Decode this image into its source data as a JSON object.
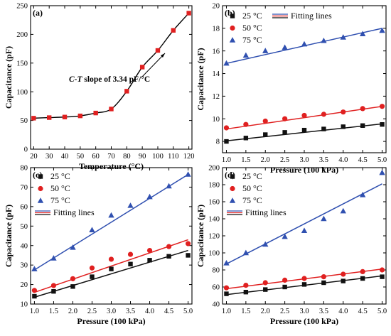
{
  "chart_data": [
    {
      "panel_label": "(a)",
      "type": "line",
      "xlabel": "Temperature (°C)",
      "ylabel": "Capacitance (pF)",
      "xlim": [
        18,
        122
      ],
      "ylim": [
        0,
        250
      ],
      "xticks": [
        20,
        30,
        40,
        50,
        60,
        70,
        80,
        90,
        100,
        110,
        120
      ],
      "yticks": [
        0,
        50,
        100,
        150,
        200,
        250
      ],
      "annotation_italic": "C-T",
      "annotation_rest": " slope of 3.34 pF/°C",
      "series": [
        {
          "marker": "square",
          "color": "#e02020",
          "line_color": "#000000",
          "x": [
            20,
            30,
            40,
            50,
            60,
            70,
            80,
            90,
            100,
            110,
            120
          ],
          "y": [
            54,
            55,
            56,
            58,
            63,
            70,
            101,
            143,
            172,
            207,
            237
          ]
        }
      ]
    },
    {
      "panel_label": "(b)",
      "type": "scatter",
      "xlabel": "Pressure (100 kPa)",
      "ylabel": "Capacitance (pF)",
      "xlim": [
        0.9,
        5.1
      ],
      "ylim": [
        7,
        20
      ],
      "xticks": [
        1.0,
        1.5,
        2.0,
        2.5,
        3.0,
        3.5,
        4.0,
        4.5,
        5.0
      ],
      "yticks": [
        8,
        10,
        12,
        14,
        16,
        18,
        20
      ],
      "legend_fit_label": "Fitting lines",
      "legend_layout": "top-wide",
      "series": [
        {
          "name": "25 °C",
          "marker": "square",
          "color": "#111111",
          "x": [
            1,
            1.5,
            2,
            2.5,
            3,
            3.5,
            4,
            4.5,
            5
          ],
          "y": [
            8.0,
            8.3,
            8.6,
            8.8,
            9.0,
            9.1,
            9.3,
            9.4,
            9.5
          ],
          "fit": [
            8.05,
            9.55
          ]
        },
        {
          "name": "50 °C",
          "marker": "circle",
          "color": "#e02020",
          "x": [
            1,
            1.5,
            2,
            2.5,
            3,
            3.5,
            4,
            4.5,
            5
          ],
          "y": [
            9.2,
            9.5,
            9.8,
            10.0,
            10.3,
            10.4,
            10.6,
            10.9,
            11.1
          ],
          "fit": [
            9.1,
            11.1
          ]
        },
        {
          "name": "75 °C",
          "marker": "triangle",
          "color": "#3050b0",
          "x": [
            1,
            1.5,
            2,
            2.5,
            3,
            3.5,
            4,
            4.5,
            5
          ],
          "y": [
            14.9,
            15.6,
            16.0,
            16.3,
            16.6,
            16.9,
            17.2,
            17.5,
            17.8
          ],
          "fit": [
            14.9,
            18.0
          ]
        }
      ]
    },
    {
      "panel_label": "(c)",
      "type": "scatter",
      "xlabel": "Pressure (100 kPa)",
      "ylabel": "Capacitance (pF)",
      "xlim": [
        0.9,
        5.1
      ],
      "ylim": [
        10,
        80
      ],
      "xticks": [
        1.0,
        1.5,
        2.0,
        2.5,
        3.0,
        3.5,
        4.0,
        4.5,
        5.0
      ],
      "yticks": [
        10,
        20,
        30,
        40,
        50,
        60,
        70,
        80
      ],
      "legend_fit_label": "Fitting lines",
      "legend_layout": "top-left",
      "series": [
        {
          "name": "25 °C",
          "marker": "square",
          "color": "#111111",
          "x": [
            1,
            1.5,
            2,
            2.5,
            3,
            3.5,
            4,
            4.5,
            5
          ],
          "y": [
            14,
            16.5,
            19,
            24,
            28,
            30.5,
            32.5,
            34.5,
            35
          ],
          "fit": [
            13.5,
            37.5
          ]
        },
        {
          "name": "50 °C",
          "marker": "circle",
          "color": "#e02020",
          "x": [
            1,
            1.5,
            2,
            2.5,
            3,
            3.5,
            4,
            4.5,
            5
          ],
          "y": [
            17,
            19.5,
            23,
            28.5,
            33,
            35.5,
            37.5,
            39.5,
            41
          ],
          "fit": [
            16,
            43
          ]
        },
        {
          "name": "75 °C",
          "marker": "triangle",
          "color": "#3050b0",
          "x": [
            1,
            1.5,
            2,
            2.5,
            3,
            3.5,
            4,
            4.5,
            5
          ],
          "y": [
            28,
            33.5,
            39,
            48,
            55.5,
            60.5,
            65,
            70.5,
            76.5
          ],
          "fit": [
            27.5,
            76.5
          ]
        }
      ]
    },
    {
      "panel_label": "(d)",
      "type": "scatter",
      "xlabel": "Pressure (100 kPa)",
      "ylabel": "Capacitance (pF)",
      "xlim": [
        0.9,
        5.1
      ],
      "ylim": [
        40,
        200
      ],
      "xticks": [
        1.0,
        1.5,
        2.0,
        2.5,
        3.0,
        3.5,
        4.0,
        4.5,
        5.0
      ],
      "yticks": [
        40,
        60,
        80,
        100,
        120,
        140,
        160,
        180,
        200
      ],
      "legend_fit_label": "Fitting lines",
      "legend_layout": "top-left",
      "series": [
        {
          "name": "25 °C",
          "marker": "square",
          "color": "#111111",
          "x": [
            1,
            1.5,
            2,
            2.5,
            3,
            3.5,
            4,
            4.5,
            5
          ],
          "y": [
            52,
            54,
            57,
            60,
            63,
            65,
            67,
            70,
            72
          ],
          "fit": [
            51,
            73
          ]
        },
        {
          "name": "50 °C",
          "marker": "circle",
          "color": "#e02020",
          "x": [
            1,
            1.5,
            2,
            2.5,
            3,
            3.5,
            4,
            4.5,
            5
          ],
          "y": [
            59,
            62,
            65,
            68,
            70,
            72,
            75,
            78,
            80
          ],
          "fit": [
            58,
            81
          ]
        },
        {
          "name": "75 °C",
          "marker": "triangle",
          "color": "#3050b0",
          "x": [
            1,
            1.5,
            2,
            2.5,
            3,
            3.5,
            4,
            4.5,
            5
          ],
          "y": [
            88,
            100,
            110,
            119,
            126,
            140,
            149,
            168,
            194
          ],
          "fit": [
            87,
            181
          ]
        }
      ]
    }
  ]
}
